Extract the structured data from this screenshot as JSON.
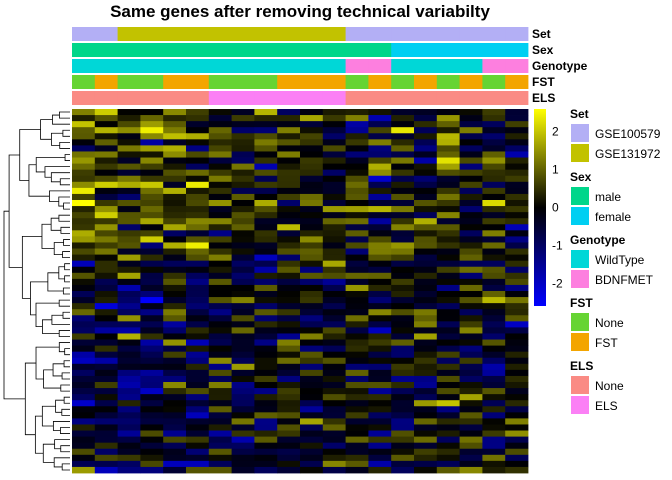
{
  "chart_data": {
    "type": "heatmap",
    "title": "Same genes after removing technical variabilty",
    "n_rows": 60,
    "n_cols": 20,
    "colorbar": {
      "ticks": [
        2,
        1,
        0,
        -1,
        -2
      ],
      "range": [
        -2.6,
        2.6
      ],
      "colors": {
        "high": "#ffff00",
        "mid": "#000000",
        "low": "#0000ff"
      }
    },
    "annotations": [
      {
        "name": "Set",
        "values": [
          "GSE100579",
          "GSE100579",
          "GSE131972",
          "GSE131972",
          "GSE131972",
          "GSE131972",
          "GSE131972",
          "GSE131972",
          "GSE131972",
          "GSE131972",
          "GSE131972",
          "GSE131972",
          "GSE100579",
          "GSE100579",
          "GSE100579",
          "GSE100579",
          "GSE100579",
          "GSE100579",
          "GSE100579",
          "GSE100579"
        ]
      },
      {
        "name": "Sex",
        "values": [
          "male",
          "male",
          "male",
          "male",
          "male",
          "male",
          "male",
          "male",
          "male",
          "male",
          "male",
          "male",
          "male",
          "male",
          "female",
          "female",
          "female",
          "female",
          "female",
          "female"
        ]
      },
      {
        "name": "Genotype",
        "values": [
          "WildType",
          "WildType",
          "WildType",
          "WildType",
          "WildType",
          "WildType",
          "WildType",
          "WildType",
          "WildType",
          "WildType",
          "WildType",
          "WildType",
          "BDNFMET",
          "BDNFMET",
          "WildType",
          "WildType",
          "WildType",
          "WildType",
          "BDNFMET",
          "BDNFMET"
        ]
      },
      {
        "name": "FST",
        "values": [
          "None",
          "FST",
          "None",
          "None",
          "FST",
          "FST",
          "None",
          "None",
          "None",
          "FST",
          "FST",
          "FST",
          "None",
          "FST",
          "None",
          "FST",
          "None",
          "FST",
          "None",
          "FST"
        ]
      },
      {
        "name": "ELS",
        "values": [
          "None",
          "None",
          "None",
          "None",
          "None",
          "None",
          "ELS",
          "ELS",
          "ELS",
          "ELS",
          "ELS",
          "ELS",
          "None",
          "None",
          "None",
          "None",
          "None",
          "None",
          "None",
          "None"
        ]
      }
    ],
    "legends": [
      {
        "title": "Set",
        "entries": [
          {
            "label": "GSE100579",
            "color": "#b3aff5"
          },
          {
            "label": "GSE131972",
            "color": "#c2c200"
          }
        ]
      },
      {
        "title": "Sex",
        "entries": [
          {
            "label": "male",
            "color": "#00d68a"
          },
          {
            "label": "female",
            "color": "#00cff2"
          }
        ]
      },
      {
        "title": "Genotype",
        "entries": [
          {
            "label": "WildType",
            "color": "#00d7d7"
          },
          {
            "label": "BDNFMET",
            "color": "#fd7fdf"
          }
        ]
      },
      {
        "title": "FST",
        "entries": [
          {
            "label": "None",
            "color": "#66d433"
          },
          {
            "label": "FST",
            "color": "#f3a500"
          }
        ]
      },
      {
        "title": "ELS",
        "entries": [
          {
            "label": "None",
            "color": "#fa8b84"
          },
          {
            "label": "ELS",
            "color": "#fb80f5"
          }
        ]
      }
    ],
    "row_dendrogram": true
  }
}
